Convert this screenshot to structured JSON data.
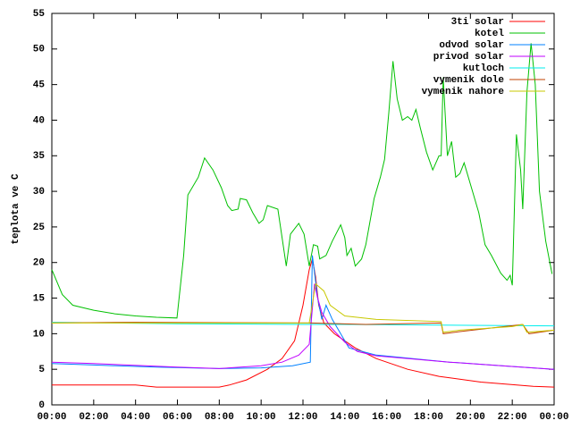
{
  "chart_data": {
    "type": "line",
    "y_label": "teplota ve C",
    "xlim": [
      0,
      24
    ],
    "xticks": [
      {
        "value": 0,
        "label": "00:00"
      },
      {
        "value": 2,
        "label": "02:00"
      },
      {
        "value": 4,
        "label": "04:00"
      },
      {
        "value": 6,
        "label": "06:00"
      },
      {
        "value": 8,
        "label": "08:00"
      },
      {
        "value": 10,
        "label": "10:00"
      },
      {
        "value": 12,
        "label": "12:00"
      },
      {
        "value": 14,
        "label": "14:00"
      },
      {
        "value": 16,
        "label": "16:00"
      },
      {
        "value": 18,
        "label": "18:00"
      },
      {
        "value": 20,
        "label": "20:00"
      },
      {
        "value": 22,
        "label": "22:00"
      },
      {
        "value": 24,
        "label": "00:00"
      }
    ],
    "ylim": [
      0,
      55
    ],
    "yticks": [
      0,
      5,
      10,
      15,
      20,
      25,
      30,
      35,
      40,
      45,
      50,
      55
    ],
    "legend": "top-right",
    "series": [
      {
        "name": "3ti solar",
        "color": "#ff0000",
        "x": [
          0,
          4,
          5,
          8,
          8.5,
          9.3,
          10.3,
          11,
          11.6,
          12,
          12.3,
          12.45,
          12.6,
          12.75,
          13,
          13.5,
          14.5,
          15.5,
          17,
          18.5,
          20.5,
          23,
          24
        ],
        "values": [
          2.8,
          2.8,
          2.5,
          2.5,
          2.8,
          3.5,
          5,
          6.5,
          9,
          14,
          19,
          20.5,
          18,
          14,
          11.5,
          10,
          8,
          6.5,
          5,
          4,
          3.2,
          2.6,
          2.5
        ]
      },
      {
        "name": "kotel",
        "color": "#00c000",
        "x": [
          0,
          0.5,
          1,
          2,
          3,
          4,
          5,
          5.98,
          6.3,
          6.5,
          7,
          7.3,
          7.7,
          8.1,
          8.4,
          8.6,
          8.9,
          9.0,
          9.3,
          9.6,
          9.9,
          10.1,
          10.3,
          10.8,
          11.2,
          11.4,
          11.8,
          12.05,
          12.3,
          12.5,
          12.7,
          12.8,
          13.1,
          13.4,
          13.8,
          14.0,
          14.1,
          14.3,
          14.5,
          14.8,
          15.0,
          15.4,
          15.7,
          15.9,
          16.1,
          16.3,
          16.5,
          16.75,
          17.0,
          17.2,
          17.4,
          17.6,
          17.9,
          18.2,
          18.5,
          18.6,
          18.7,
          18.9,
          19.1,
          19.3,
          19.5,
          19.7,
          20.1,
          20.4,
          20.7,
          21.0,
          21.45,
          21.75,
          21.9,
          22.0,
          22.2,
          22.4,
          22.5,
          22.7,
          22.9,
          23.1,
          23.3,
          23.6,
          23.9
        ],
        "values": [
          19,
          15.5,
          14,
          13.3,
          12.8,
          12.5,
          12.3,
          12.2,
          21,
          29.5,
          32,
          34.7,
          33,
          30.5,
          28,
          27.3,
          27.5,
          29,
          28.8,
          27,
          25.5,
          26,
          28,
          27.5,
          19.5,
          24,
          25.5,
          24,
          19.5,
          22.5,
          22.3,
          20.5,
          21,
          23,
          25.3,
          23.5,
          21,
          22,
          19.5,
          20.5,
          22.5,
          29,
          32,
          34.5,
          41,
          48.3,
          43,
          40,
          40.5,
          40,
          41.5,
          39,
          35.5,
          33,
          35,
          35,
          46,
          35,
          37,
          32,
          32.5,
          34,
          30,
          27,
          22.5,
          21,
          18.5,
          17.5,
          18.2,
          16.8,
          38,
          33,
          27.5,
          44,
          50.8,
          45,
          30,
          23,
          18.4
        ]
      },
      {
        "name": "odvod solar",
        "color": "#0080ff",
        "x": [
          0,
          2,
          5,
          8,
          10,
          11.5,
          12.35,
          12.45,
          12.7,
          12.9,
          13.1,
          13.4,
          14.2,
          15.5,
          19,
          21.5,
          24
        ],
        "values": [
          5.8,
          5.6,
          5.3,
          5.1,
          5.2,
          5.5,
          6,
          21,
          15,
          12,
          14,
          12,
          8,
          7,
          6,
          5.5,
          5
        ]
      },
      {
        "name": "privod solar",
        "color": "#c000ff",
        "x": [
          0,
          2,
          6,
          8,
          10,
          11,
          11.8,
          12.3,
          12.55,
          12.7,
          12.9,
          13.3,
          14,
          14.6,
          15.5,
          19,
          21.5,
          24
        ],
        "values": [
          6,
          5.8,
          5.3,
          5.1,
          5.5,
          6,
          7,
          8.5,
          17,
          15,
          13,
          11,
          8.8,
          7.5,
          6.9,
          6,
          5.5,
          5
        ]
      },
      {
        "name": "kutloch",
        "color": "#00eeee",
        "x": [
          0,
          6,
          12,
          14,
          18.6,
          24
        ],
        "values": [
          11.6,
          11.4,
          11.3,
          11.3,
          11.2,
          11.1
        ]
      },
      {
        "name": "vymenik dole",
        "color": "#c04000",
        "x": [
          0,
          4,
          12.4,
          15,
          18.6,
          18.7,
          19.5,
          21,
          22.5,
          22.8,
          24
        ],
        "values": [
          11.5,
          11.6,
          11.5,
          11.3,
          11.5,
          10,
          10.3,
          10.8,
          11.3,
          10,
          10.5
        ]
      },
      {
        "name": "vymenik nahore",
        "color": "#c8c800",
        "x": [
          0,
          12.3,
          12.6,
          13,
          13.3,
          14,
          15.5,
          18.6,
          18.7,
          19.5,
          22,
          22.5,
          22.7,
          24
        ],
        "values": [
          11.5,
          11.5,
          17,
          16,
          14,
          12.5,
          12,
          11.7,
          10.2,
          10.5,
          11,
          11.3,
          10.2,
          10.5
        ]
      }
    ]
  }
}
